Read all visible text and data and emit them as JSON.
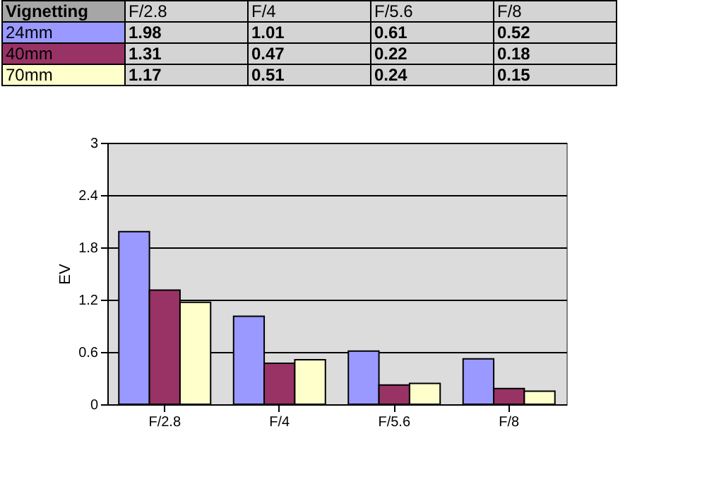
{
  "chart_data": {
    "type": "bar",
    "legend_title": "Vignetting",
    "ylabel": "EV",
    "categories": [
      "F/2.8",
      "F/4",
      "F/5.6",
      "F/8"
    ],
    "series": [
      {
        "name": "24mm",
        "color": "#9999ff",
        "values": [
          1.98,
          1.01,
          0.61,
          0.52
        ]
      },
      {
        "name": "40mm",
        "color": "#993366",
        "values": [
          1.31,
          0.47,
          0.22,
          0.18
        ]
      },
      {
        "name": "70mm",
        "color": "#ffffcc",
        "values": [
          1.17,
          0.51,
          0.24,
          0.15
        ]
      }
    ],
    "ylim": [
      0,
      3
    ],
    "yticks": [
      0,
      0.6,
      1.2,
      1.8,
      2.4,
      3
    ],
    "grid": "y",
    "legend": "top",
    "data_labels": true
  }
}
